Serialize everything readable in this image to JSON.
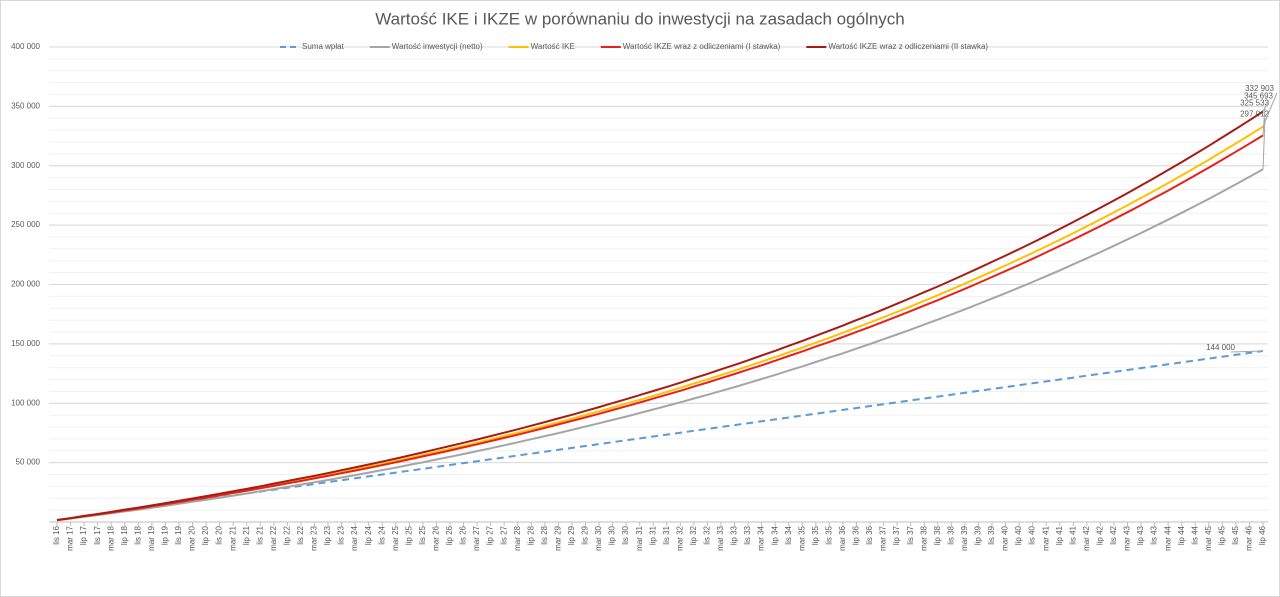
{
  "chart_data": {
    "type": "line",
    "title": "Wartość IKE i IKZE w porównaniu do inwestycji na zasadach ogólnych",
    "categories": [
      "lis 16",
      "mar 17",
      "lip 17",
      "lis 17",
      "mar 18",
      "lip 18",
      "lis 18",
      "mar 19",
      "lip 19",
      "lis 19",
      "mar 20",
      "lip 20",
      "lis 20",
      "mar 21",
      "lip 21",
      "lis 21",
      "mar 22",
      "lip 22",
      "lis 22",
      "mar 23",
      "lip 23",
      "lis 23",
      "mar 24",
      "lip 24",
      "lis 24",
      "mar 25",
      "lip 25",
      "lis 25",
      "mar 26",
      "lip 26",
      "lis 26",
      "mar 27",
      "lip 27",
      "lis 27",
      "mar 28",
      "lip 28",
      "lis 28",
      "mar 29",
      "lip 29",
      "lis 29",
      "mar 30",
      "lip 30",
      "lis 30",
      "mar 31",
      "lip 31",
      "lis 31",
      "mar 32",
      "lip 32",
      "lis 32",
      "mar 33",
      "lip 33",
      "lis 33",
      "mar 34",
      "lip 34",
      "lis 34",
      "mar 35",
      "lip 35",
      "lis 35",
      "mar 36",
      "lip 36",
      "lis 36",
      "mar 37",
      "lip 37",
      "lis 37",
      "mar 38",
      "lip 38",
      "lis 38",
      "mar 39",
      "lip 39",
      "lis 39",
      "mar 40",
      "lip 40",
      "lis 40",
      "mar 41",
      "lip 41",
      "lis 41",
      "mar 42",
      "lip 42",
      "lis 42",
      "mar 43",
      "lip 43",
      "lis 43",
      "mar 44",
      "lip 44",
      "lis 44",
      "mar 45",
      "lip 45",
      "lis 45",
      "mar 46",
      "lip 46"
    ],
    "series": [
      {
        "name": "Suma wpłat",
        "color": "#5b9bd5",
        "dashed": true,
        "end_label": "144 000",
        "values": [
          1600,
          3200,
          4800,
          6400,
          8000,
          9600,
          11200,
          12800,
          14400,
          16000,
          17600,
          19200,
          20800,
          22400,
          24000,
          25600,
          27200,
          28800,
          30400,
          32000,
          33600,
          35200,
          36800,
          38400,
          40000,
          41600,
          43200,
          44800,
          46400,
          48000,
          49600,
          51200,
          52800,
          54400,
          56000,
          57600,
          59200,
          60800,
          62400,
          64000,
          65600,
          67200,
          68800,
          70400,
          72000,
          73600,
          75200,
          76800,
          78400,
          80000,
          81600,
          83200,
          84800,
          86400,
          88000,
          89600,
          91200,
          92800,
          94400,
          96000,
          97600,
          99200,
          100800,
          102400,
          104000,
          105600,
          107200,
          108800,
          110400,
          112000,
          113600,
          115200,
          116800,
          118400,
          120000,
          121600,
          123200,
          124800,
          126400,
          128000,
          129600,
          131200,
          132800,
          134400,
          136000,
          137600,
          139200,
          140800,
          142400,
          144000
        ]
      },
      {
        "name": "Wartość inwestycji (netto)",
        "color": "#a5a5a5",
        "dashed": false,
        "end_label": "297 012",
        "values": [
          1400,
          2900,
          4400,
          5800,
          7300,
          8900,
          10400,
          12000,
          13600,
          15300,
          17000,
          18700,
          20400,
          22200,
          24000,
          25900,
          27700,
          29600,
          31500,
          33500,
          35400,
          37500,
          39500,
          41600,
          43700,
          45800,
          48100,
          50300,
          52600,
          54900,
          57300,
          59700,
          62100,
          64600,
          67100,
          69700,
          72300,
          74900,
          77600,
          80400,
          83100,
          86000,
          88800,
          91800,
          94700,
          97800,
          100800,
          104000,
          107100,
          110400,
          113600,
          117000,
          120400,
          123900,
          127500,
          131000,
          134700,
          138400,
          142100,
          146000,
          149900,
          153900,
          157900,
          162000,
          166200,
          170400,
          174700,
          179100,
          183600,
          188100,
          192700,
          197400,
          202100,
          207000,
          211900,
          217000,
          222100,
          227300,
          232600,
          238000,
          243400,
          249000,
          254600,
          260400,
          266200,
          272100,
          278200,
          284400,
          290600,
          297012
        ]
      },
      {
        "name": "Wartość IKE",
        "color": "#ffc000",
        "dashed": false,
        "end_label": "332 903",
        "values": [
          1600,
          3200,
          4900,
          6500,
          8200,
          10000,
          11700,
          13500,
          15300,
          17200,
          19100,
          21000,
          22900,
          24900,
          26900,
          29000,
          31100,
          33200,
          35300,
          37500,
          39700,
          42000,
          44300,
          46600,
          49000,
          51400,
          53900,
          56400,
          59000,
          61600,
          64200,
          66900,
          69600,
          72400,
          75200,
          78100,
          81000,
          84000,
          87000,
          90100,
          93200,
          96400,
          99600,
          102900,
          106200,
          109600,
          113000,
          116600,
          120100,
          123800,
          127400,
          131200,
          135000,
          138900,
          142900,
          146900,
          151000,
          155100,
          159300,
          163700,
          168000,
          172500,
          177000,
          181600,
          186300,
          191000,
          195900,
          200800,
          205800,
          210900,
          216000,
          221300,
          226600,
          232100,
          237600,
          243300,
          249000,
          254800,
          260700,
          266800,
          272900,
          279100,
          285400,
          291900,
          298400,
          305100,
          311900,
          318800,
          325800,
          332903
        ]
      },
      {
        "name": "Wartość IKZE wraz z odliczeniami (I stawka)",
        "color": "#e8201a",
        "dashed": false,
        "end_label": "325 533",
        "values": [
          1600,
          3100,
          4800,
          6400,
          8000,
          9800,
          11400,
          13200,
          15000,
          16800,
          18700,
          20500,
          22400,
          24400,
          26300,
          28400,
          30400,
          32500,
          34500,
          36700,
          38800,
          41100,
          43300,
          45600,
          47900,
          50300,
          52700,
          55200,
          57700,
          60200,
          62800,
          65400,
          68100,
          70800,
          73500,
          76400,
          79200,
          82200,
          85100,
          88100,
          91100,
          94300,
          97400,
          100600,
          103900,
          107200,
          110500,
          114000,
          117500,
          121100,
          124600,
          128300,
          132000,
          135800,
          139800,
          143700,
          147700,
          151700,
          155800,
          160100,
          164300,
          168700,
          173100,
          177600,
          182200,
          186800,
          191600,
          196400,
          201300,
          206300,
          211300,
          216400,
          221600,
          227000,
          232400,
          237900,
          243500,
          249200,
          255000,
          260900,
          266900,
          273000,
          279100,
          285500,
          291900,
          298400,
          305000,
          311800,
          318600,
          325533
        ]
      },
      {
        "name": "Wartość IKZE wraz z odliczeniami (II stawka)",
        "color": "#a51c14",
        "dashed": false,
        "end_label": "345 693",
        "values": [
          1700,
          3300,
          5100,
          6700,
          8500,
          10400,
          12100,
          14000,
          15900,
          17900,
          19800,
          21800,
          23800,
          25900,
          27900,
          30100,
          32300,
          34500,
          36700,
          38900,
          41200,
          43600,
          46000,
          48400,
          50900,
          53400,
          56000,
          58600,
          61300,
          64000,
          66700,
          69500,
          72300,
          75200,
          78100,
          81100,
          84100,
          87200,
          90300,
          93600,
          96800,
          100100,
          103400,
          106900,
          110300,
          113800,
          117300,
          121100,
          124700,
          128600,
          132300,
          136200,
          140200,
          144200,
          148400,
          152500,
          156800,
          161100,
          165400,
          170000,
          174400,
          179100,
          183800,
          188600,
          193500,
          198300,
          203400,
          208500,
          213700,
          219000,
          224300,
          229800,
          235300,
          241000,
          246700,
          252600,
          258600,
          264600,
          270700,
          277000,
          283400,
          289800,
          296400,
          303100,
          309900,
          316800,
          323900,
          331000,
          338300,
          345693
        ]
      }
    ],
    "ylim": [
      0,
      400000
    ],
    "yticks": [
      {
        "value": 50000,
        "label": "50 000"
      },
      {
        "value": 100000,
        "label": "100 000"
      },
      {
        "value": 150000,
        "label": "150 000"
      },
      {
        "value": 200000,
        "label": "200 000"
      },
      {
        "value": 250000,
        "label": "250 000"
      },
      {
        "value": 300000,
        "label": "300 000"
      },
      {
        "value": 350000,
        "label": "350 000"
      },
      {
        "value": 400000,
        "label": "400 000"
      }
    ],
    "minor_grid_step": 10000,
    "grid": true,
    "legend": "top"
  }
}
